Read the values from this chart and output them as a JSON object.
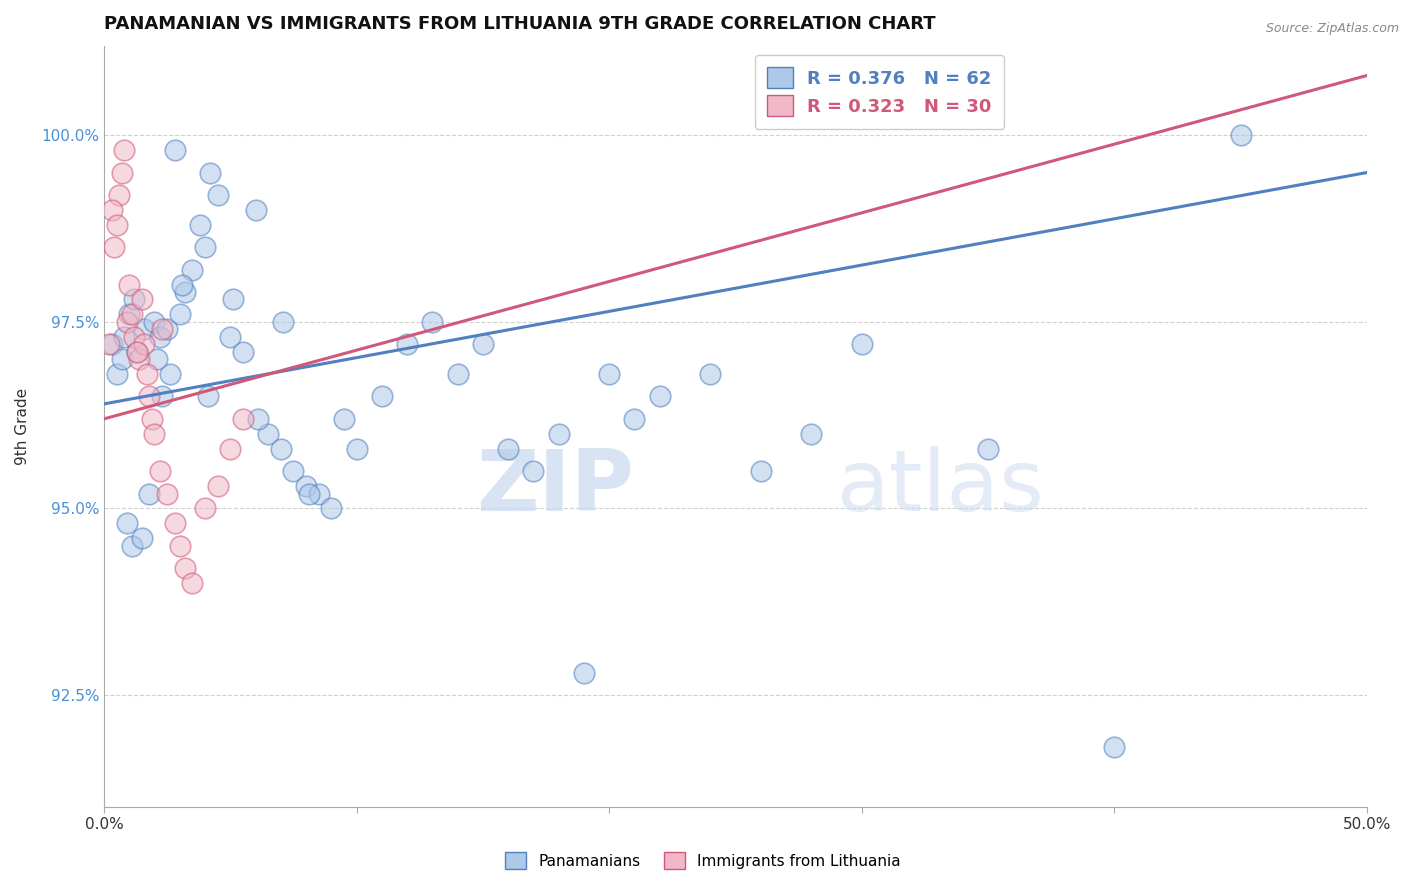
{
  "title": "PANAMANIAN VS IMMIGRANTS FROM LITHUANIA 9TH GRADE CORRELATION CHART",
  "source_text": "Source: ZipAtlas.com",
  "ylabel_text": "9th Grade",
  "xlim": [
    0.0,
    50.0
  ],
  "ylim": [
    91.0,
    101.2
  ],
  "x_ticks": [
    0.0,
    10.0,
    20.0,
    30.0,
    40.0,
    50.0
  ],
  "x_tick_labels": [
    "0.0%",
    "",
    "",
    "",
    "",
    "50.0%"
  ],
  "y_ticks": [
    92.5,
    95.0,
    97.5,
    100.0
  ],
  "y_tick_labels": [
    "92.5%",
    "95.0%",
    "97.5%",
    "100.0%"
  ],
  "blue_color": "#adc8e8",
  "blue_line_color": "#5080c0",
  "pink_color": "#f0b8c8",
  "pink_line_color": "#d05878",
  "watermark_zip": "ZIP",
  "watermark_atlas": "atlas",
  "legend_label_panamanian": "Panamanians",
  "legend_label_lithuania": "Immigrants from Lithuania",
  "legend_blue_label": "R = 0.376   N = 62",
  "legend_pink_label": "R = 0.323   N = 30",
  "blue_scatter_x": [
    0.3,
    0.5,
    0.7,
    0.8,
    0.9,
    1.0,
    1.1,
    1.2,
    1.3,
    1.5,
    1.6,
    1.8,
    2.0,
    2.2,
    2.3,
    2.5,
    2.6,
    2.8,
    3.0,
    3.2,
    3.5,
    3.8,
    4.0,
    4.2,
    4.5,
    5.0,
    5.5,
    6.0,
    6.5,
    7.0,
    7.5,
    8.0,
    8.5,
    9.0,
    9.5,
    10.0,
    11.0,
    12.0,
    13.0,
    14.0,
    15.0,
    16.0,
    17.0,
    18.0,
    19.0,
    20.0,
    21.0,
    22.0,
    24.0,
    26.0,
    28.0,
    30.0,
    35.0,
    40.0,
    45.0,
    2.1,
    3.1,
    4.1,
    5.1,
    6.1,
    7.1,
    8.1
  ],
  "blue_scatter_y": [
    97.2,
    96.8,
    97.0,
    97.3,
    94.8,
    97.6,
    94.5,
    97.8,
    97.1,
    94.6,
    97.4,
    95.2,
    97.5,
    97.3,
    96.5,
    97.4,
    96.8,
    99.8,
    97.6,
    97.9,
    98.2,
    98.8,
    98.5,
    99.5,
    99.2,
    97.3,
    97.1,
    99.0,
    96.0,
    95.8,
    95.5,
    95.3,
    95.2,
    95.0,
    96.2,
    95.8,
    96.5,
    97.2,
    97.5,
    96.8,
    97.2,
    95.8,
    95.5,
    96.0,
    92.8,
    96.8,
    96.2,
    96.5,
    96.8,
    95.5,
    96.0,
    97.2,
    95.8,
    91.8,
    100.0,
    97.0,
    98.0,
    96.5,
    97.8,
    96.2,
    97.5,
    95.2
  ],
  "pink_scatter_x": [
    0.2,
    0.4,
    0.6,
    0.7,
    0.8,
    0.9,
    1.0,
    1.1,
    1.2,
    1.4,
    1.5,
    1.6,
    1.7,
    1.8,
    1.9,
    2.0,
    2.2,
    2.5,
    2.8,
    3.0,
    3.2,
    3.5,
    4.0,
    4.5,
    5.0,
    5.5,
    0.3,
    0.5,
    1.3,
    2.3
  ],
  "pink_scatter_y": [
    97.2,
    98.5,
    99.2,
    99.5,
    99.8,
    97.5,
    98.0,
    97.6,
    97.3,
    97.0,
    97.8,
    97.2,
    96.8,
    96.5,
    96.2,
    96.0,
    95.5,
    95.2,
    94.8,
    94.5,
    94.2,
    94.0,
    95.0,
    95.3,
    95.8,
    96.2,
    99.0,
    98.8,
    97.1,
    97.4
  ],
  "blue_trend_x0": 0.0,
  "blue_trend_y0": 96.4,
  "blue_trend_x1": 50.0,
  "blue_trend_y1": 99.5,
  "pink_trend_x0": 0.0,
  "pink_trend_y0": 96.2,
  "pink_trend_x1": 50.0,
  "pink_trend_y1": 100.8
}
